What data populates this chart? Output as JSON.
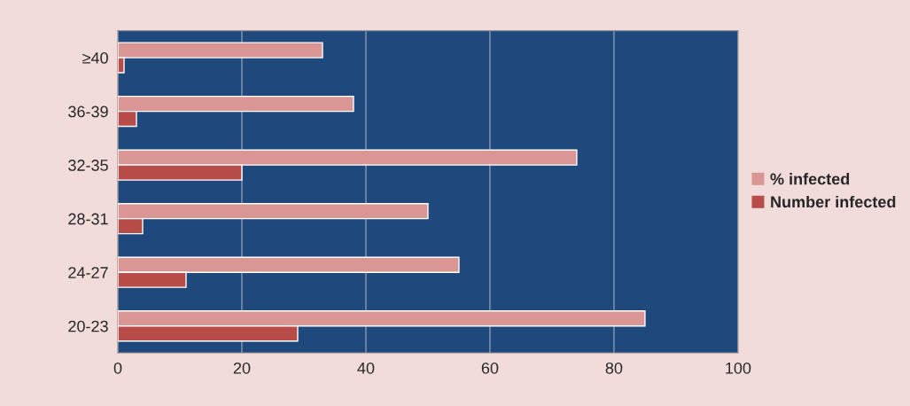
{
  "chart_data": {
    "type": "bar",
    "orientation": "horizontal",
    "categories": [
      "≥40",
      "36-39",
      "32-35",
      "28-31",
      "24-27",
      "20-23"
    ],
    "series": [
      {
        "name": "% infected",
        "color": "#d99694",
        "values": [
          33,
          38,
          74,
          50,
          55,
          85
        ]
      },
      {
        "name": "Number infected",
        "color": "#b84c49",
        "values": [
          1,
          3,
          20,
          4,
          11,
          29
        ]
      }
    ],
    "xlim": [
      0,
      100
    ],
    "xticks": [
      0,
      20,
      40,
      60,
      80,
      100
    ],
    "grid": "x",
    "legend": "right"
  }
}
